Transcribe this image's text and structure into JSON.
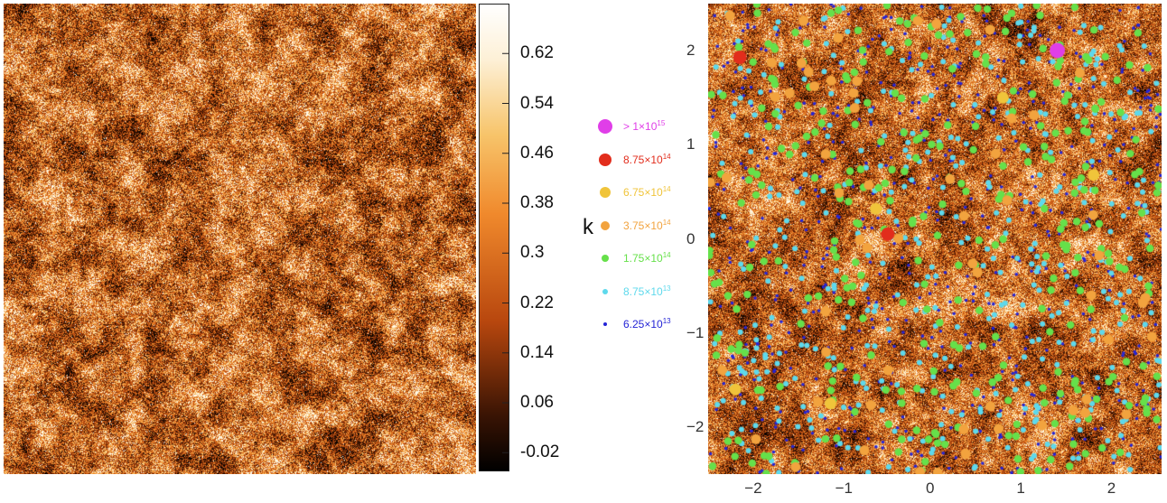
{
  "chart_data": [
    {
      "type": "heatmap",
      "title": "",
      "colorbar": {
        "label": "k",
        "ticks": [
          "0.62",
          "0.54",
          "0.46",
          "0.38",
          "0.3",
          "0.22",
          "0.14",
          "0.06",
          "-0.02"
        ],
        "tick_values": [
          0.62,
          0.54,
          0.46,
          0.38,
          0.3,
          0.22,
          0.14,
          0.06,
          -0.02
        ],
        "range": [
          -0.05,
          0.7
        ],
        "colormap": [
          "#000000",
          "#4a1a05",
          "#b8470e",
          "#f0892c",
          "#f7c46a",
          "#fff4dc",
          "#ffffff"
        ]
      }
    },
    {
      "type": "scatter",
      "title": "",
      "xlim": [
        -2.5,
        2.5
      ],
      "ylim": [
        -2.5,
        2.5
      ],
      "x_ticks": [
        "−2",
        "−1",
        "0",
        "1",
        "2"
      ],
      "x_tick_values": [
        -2,
        -1,
        0,
        1,
        2
      ],
      "y_ticks": [
        "2",
        "1",
        "0",
        "−1",
        "−2"
      ],
      "y_tick_values": [
        2,
        1,
        0,
        -1,
        -2
      ],
      "series": [
        {
          "label_base": "> 1×10",
          "label_exp": "15",
          "color": "#e03ee8",
          "counts_shown": 1,
          "points": [
            [
              1.35,
              2.0
            ]
          ]
        },
        {
          "label_base": "8.75×10",
          "label_exp": "14",
          "color": "#e22d1c",
          "counts_shown": 2,
          "points": [
            [
              -2.15,
              1.93
            ],
            [
              -0.52,
              0.05
            ]
          ]
        },
        {
          "label_base": "6.75×10",
          "label_exp": "14",
          "color": "#f0c43a",
          "points": [
            [
              -0.65,
              0.32
            ],
            [
              1.75,
              0.68
            ],
            [
              0.75,
              1.5
            ],
            [
              -1.15,
              -1.75
            ],
            [
              -2.2,
              -1.6
            ]
          ]
        },
        {
          "label_base": "3.75×10",
          "label_exp": "14",
          "color": "#f2a33e"
        },
        {
          "label_base": "1.75×10",
          "label_exp": "14",
          "color": "#66e04a"
        },
        {
          "label_base": "8.75×10",
          "label_exp": "13",
          "color": "#5ed9ec"
        },
        {
          "label_base": "6.25×10",
          "label_exp": "13",
          "color": "#2424d6"
        }
      ]
    }
  ]
}
